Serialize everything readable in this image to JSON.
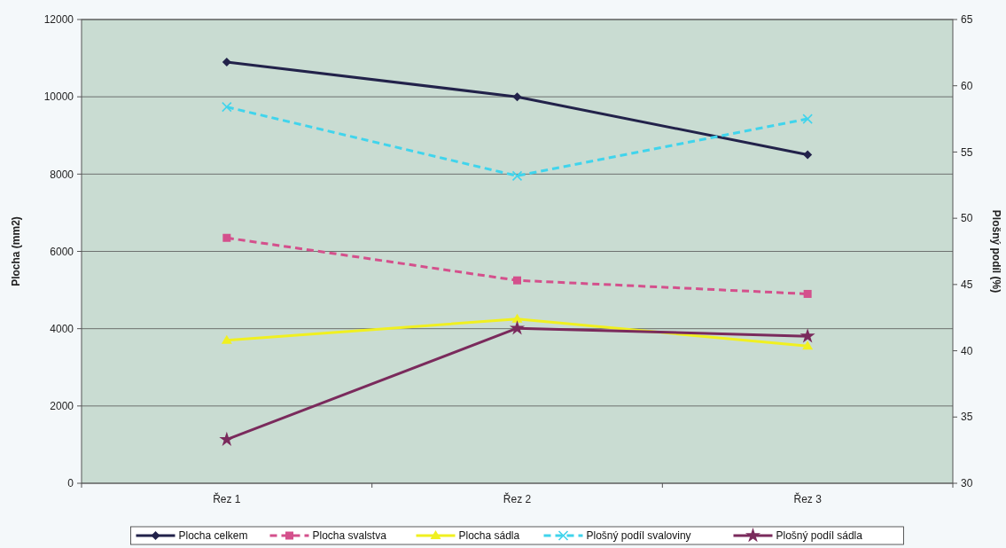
{
  "chart_data": {
    "type": "line",
    "categories": [
      "Řez 1",
      "Řez 2",
      "Řez 3"
    ],
    "ylabel": "Plocha (mm2)",
    "y2label": "Plošný podíl (%)",
    "ylim": [
      0,
      12000
    ],
    "yticks": [
      0,
      2000,
      4000,
      6000,
      8000,
      10000,
      12000
    ],
    "y2lim": [
      30,
      65
    ],
    "y2ticks": [
      30,
      35,
      40,
      45,
      50,
      55,
      60,
      65
    ],
    "grid": "y",
    "legend": "bottom",
    "series": [
      {
        "name": "Plocha celkem",
        "color": "#22224a",
        "values": [
          10900,
          10000,
          8500
        ],
        "marker": "diamond",
        "line_style": "solid"
      },
      {
        "name": "Plocha svalstva",
        "color": "#d4508c",
        "values": [
          6350,
          5250,
          4900
        ],
        "marker": "square",
        "line_style": "dashed"
      },
      {
        "name": "Plocha sádla",
        "color": "#f0f020",
        "values": [
          3700,
          4250,
          3550
        ],
        "marker": "triangle",
        "line_style": "solid"
      },
      {
        "name": "Plošný podíl svaloviny",
        "color": "#40d4ec",
        "values": [
          58.4,
          53.2,
          57.5
        ],
        "marker": "cross",
        "line_style": "dashed",
        "axis": "y2"
      },
      {
        "name": "Plošný podíl sádla",
        "color": "#7a2a5c",
        "values": [
          33.3,
          41.7,
          41.1
        ],
        "marker": "star",
        "line_style": "solid",
        "axis": "y2"
      }
    ]
  }
}
